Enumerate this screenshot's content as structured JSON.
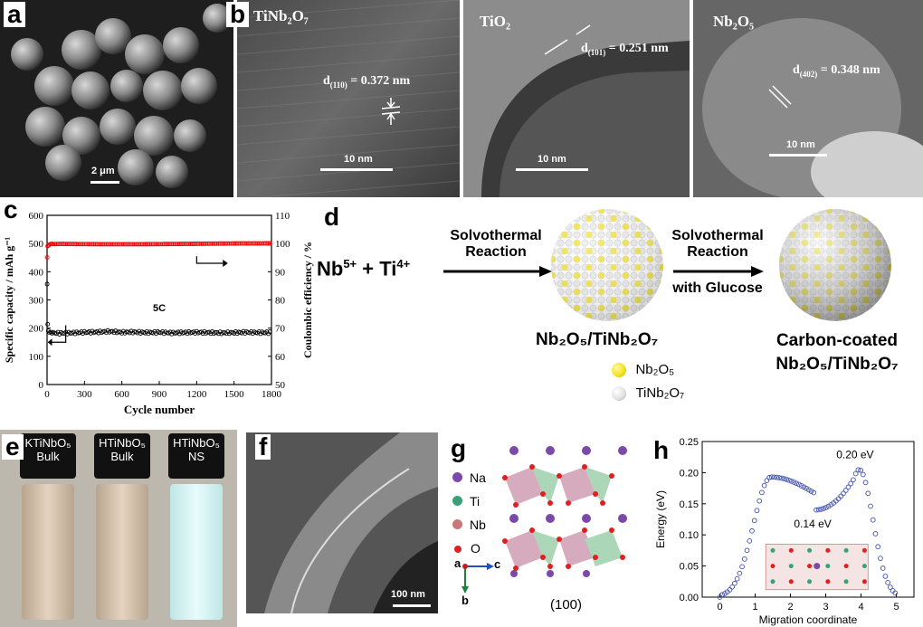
{
  "panel_a": {
    "label": "a",
    "scalebar": "2 μm"
  },
  "panel_b": {
    "label": "b",
    "images": [
      {
        "title": "TiNb₂O₇",
        "d": "d(110) = 0.372 nm",
        "d_sub": "(110)",
        "d_val": " = 0.372 nm",
        "scalebar": "10 nm"
      },
      {
        "title": "TiO₂",
        "d_sub": "(101)",
        "d_val": " = 0.251 nm",
        "scalebar": "10 nm"
      },
      {
        "title": "Nb₂O₅",
        "d_sub": "(402)",
        "d_val": " = 0.348 nm",
        "scalebar": "10 nm"
      }
    ]
  },
  "panel_c": {
    "label": "c"
  },
  "chart_data": {
    "type": "scatter",
    "xlabel": "Cycle number",
    "ylabel_left": "Specific capacity / mAh g⁻¹",
    "ylabel_right": "Coulombic efficiency / %",
    "xlim": [
      0,
      1800
    ],
    "ylim_left": [
      0,
      600
    ],
    "ylim_right": [
      50,
      110
    ],
    "xticks": [
      0,
      300,
      600,
      900,
      1200,
      1500,
      1800
    ],
    "yticks_left": [
      0,
      100,
      200,
      300,
      400,
      500,
      600
    ],
    "yticks_right": [
      50,
      60,
      70,
      80,
      90,
      100,
      110
    ],
    "annotation": "5C",
    "series": [
      {
        "axis": "left",
        "color": "#000000",
        "x": [
          1,
          5,
          10,
          20,
          50,
          100,
          200,
          300,
          400,
          500,
          600,
          700,
          800,
          900,
          1000,
          1100,
          1200,
          1300,
          1400,
          1500,
          1600,
          1700,
          1800
        ],
        "values": [
          355,
          210,
          190,
          185,
          183,
          182,
          183,
          185,
          186,
          188,
          185,
          186,
          184,
          185,
          183,
          184,
          185,
          184,
          183,
          184,
          185,
          184,
          184
        ]
      },
      {
        "axis": "right",
        "color": "#ff0000",
        "x": [
          1,
          5,
          10,
          20,
          50,
          100,
          200,
          300,
          400,
          500,
          600,
          700,
          800,
          900,
          1000,
          1100,
          1200,
          1300,
          1400,
          1500,
          1600,
          1700,
          1800
        ],
        "values": [
          95,
          99,
          99.5,
          99.7,
          99.8,
          99.9,
          99.9,
          99.9,
          99.9,
          99.9,
          99.9,
          99.9,
          99.9,
          99.9,
          99.9,
          99.9,
          99.9,
          99.9,
          99.9,
          99.9,
          99.9,
          99.9,
          99.9
        ]
      }
    ]
  },
  "panel_d": {
    "label": "d",
    "reactant_a": "Nb",
    "reactant_a_sup": "5+",
    "plus": " + Ti",
    "reactant_b_sup": "4+",
    "step1_line1": "Solvothermal",
    "step1_line2": "Reaction",
    "step2_line1": "Solvothermal",
    "step2_line2": "Reaction",
    "step2_line3": "with Glucose",
    "product1": "Nb₂O₅/TiNb₂O₇",
    "product2_line1": "Carbon-coated",
    "product2_line2": "Nb₂O₅/TiNb₂O₇",
    "legend": [
      {
        "name": "Nb₂O₅",
        "color": "#f2e21a"
      },
      {
        "name": "TiNb₂O₇",
        "color": "#e8e8e8"
      }
    ]
  },
  "panel_e": {
    "label": "e",
    "vials": [
      {
        "line1": "KTiNbO₅",
        "line2": "Bulk"
      },
      {
        "line1": "HTiNbO₅",
        "line2": "Bulk"
      },
      {
        "line1": "HTiNbO₅",
        "line2": "NS"
      }
    ]
  },
  "panel_f": {
    "label": "f",
    "scalebar": "100 nm"
  },
  "panel_g": {
    "label": "g",
    "legend": [
      {
        "name": "Na",
        "color": "#7b4aa8"
      },
      {
        "name": "Ti",
        "color": "#3aa07a"
      },
      {
        "name": "Nb",
        "color": "#c87878"
      },
      {
        "name": "O",
        "color": "#e02020"
      }
    ],
    "axis_a": "a",
    "axis_c": "c",
    "axis_b": "b",
    "plane": "(100)"
  },
  "panel_h": {
    "label": "h",
    "chart": {
      "type": "scatter",
      "xlabel": "Migration coordinate",
      "ylabel": "Energy (eV)",
      "xlim": [
        -0.5,
        5.5
      ],
      "ylim": [
        0,
        0.25
      ],
      "xticks": [
        0,
        1,
        2,
        3,
        4,
        5
      ],
      "yticks": [
        0.0,
        0.05,
        0.1,
        0.15,
        0.2,
        0.25
      ],
      "annotations": [
        "0.20 eV",
        "0.14 eV"
      ]
    }
  }
}
